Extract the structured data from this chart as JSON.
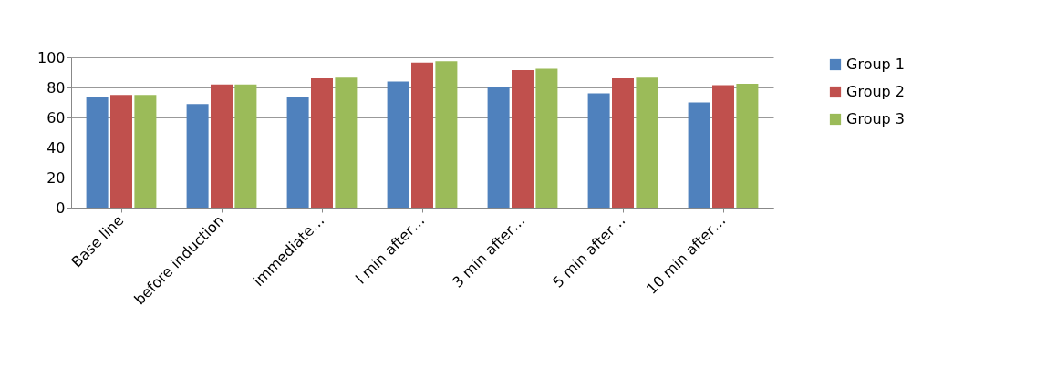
{
  "chart_data": {
    "type": "bar",
    "categories": [
      "Base line",
      "before induction",
      "immediate…",
      "l min after…",
      "3 min after…",
      "5 min after…",
      "10 min after…"
    ],
    "series": [
      {
        "name": "Group 1",
        "color": "#4f81bd",
        "values": [
          74,
          69,
          74,
          84,
          80,
          76,
          70
        ]
      },
      {
        "name": "Group 2",
        "color": "#c0504d",
        "values": [
          75,
          82,
          86,
          96.5,
          91.5,
          86,
          81.5
        ]
      },
      {
        "name": "Group 3",
        "color": "#9bbb59",
        "values": [
          75,
          82,
          86.5,
          97.5,
          92.5,
          86.5,
          82.5
        ]
      }
    ],
    "ylim": [
      0,
      100
    ],
    "yticks": [
      0,
      20,
      40,
      60,
      80,
      100
    ],
    "grid": true,
    "legend": "right"
  }
}
